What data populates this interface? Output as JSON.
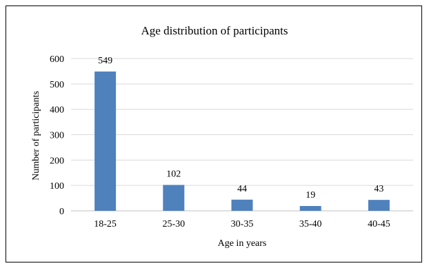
{
  "chart_data": {
    "type": "bar",
    "title": "Age distribution of participants",
    "xlabel": "Age in years",
    "ylabel": "Number of participants",
    "categories": [
      "18-25",
      "25-30",
      "30-35",
      "35-40",
      "40-45"
    ],
    "values": [
      549,
      102,
      44,
      19,
      43
    ],
    "data_labels": [
      "549",
      "102",
      "44",
      "19",
      "43"
    ],
    "ylim": [
      0,
      600
    ],
    "yticks": [
      0,
      100,
      200,
      300,
      400,
      500,
      600
    ],
    "ytick_labels": [
      "0",
      "100",
      "200",
      "300",
      "400",
      "500",
      "600"
    ],
    "grid": true,
    "legend": "none",
    "colors": {
      "bar": "#4f81bd",
      "grid": "#d9d9d9",
      "axis": "#bfbfbf"
    }
  }
}
